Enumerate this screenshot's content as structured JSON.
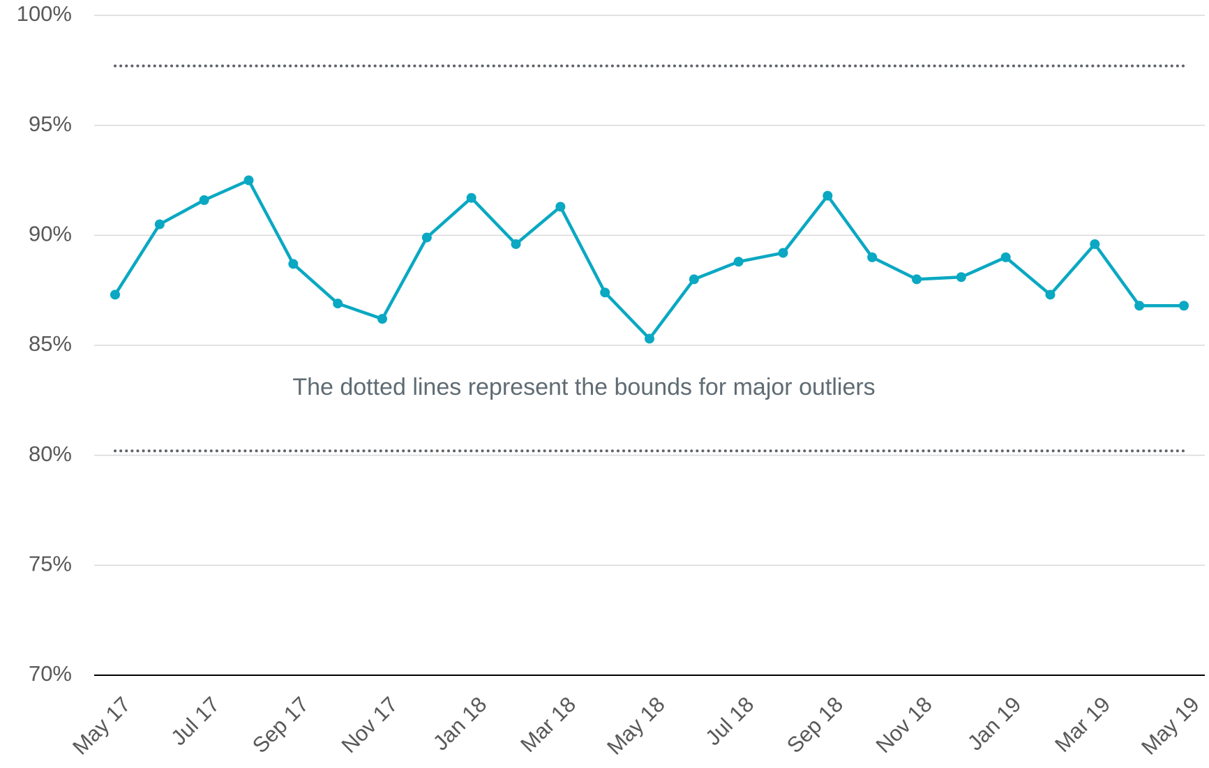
{
  "chart_data": {
    "type": "line",
    "categories": [
      "May 17",
      null,
      "Jul 17",
      null,
      "Sep 17",
      null,
      "Nov 17",
      null,
      "Jan 18",
      null,
      "Mar 18",
      null,
      "May 18",
      null,
      "Jul 18",
      null,
      "Sep 18",
      null,
      "Nov 18",
      null,
      "Jan 19",
      null,
      "Mar 19",
      null,
      "May 19"
    ],
    "values": [
      87.3,
      90.5,
      91.6,
      92.5,
      88.7,
      86.9,
      86.2,
      89.9,
      91.7,
      89.6,
      91.3,
      87.4,
      85.3,
      88.0,
      88.8,
      89.2,
      91.8,
      89.0,
      88.0,
      88.1,
      89.0,
      87.3,
      89.6,
      86.8,
      86.8
    ],
    "color": "#0aa8c2",
    "ylim": [
      70,
      100
    ],
    "yticks": [
      {
        "value": 70,
        "label": "70%"
      },
      {
        "value": 75,
        "label": "75%"
      },
      {
        "value": 80,
        "label": "80%"
      },
      {
        "value": 85,
        "label": "85%"
      },
      {
        "value": 90,
        "label": "90%"
      },
      {
        "value": 95,
        "label": "95%"
      },
      {
        "value": 100,
        "label": "100%"
      }
    ],
    "grid": true,
    "reference_lines": [
      97.7,
      80.2
    ],
    "annotation": "The dotted lines represent the bounds for major outliers"
  }
}
